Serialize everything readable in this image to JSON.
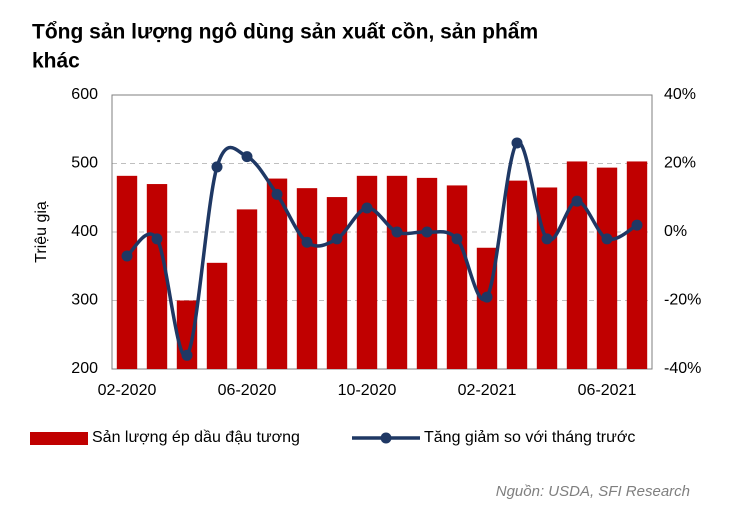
{
  "chart_data": {
    "type": "bar",
    "title": [
      "Tổng sản lượng ngô dùng sản xuất cồn, sản phẩm",
      "khác"
    ],
    "y_label": "Triệu giạ",
    "source": "Nguồn: USDA, SFI Research",
    "categories": [
      "02-2020",
      null,
      null,
      null,
      "06-2020",
      null,
      null,
      null,
      "10-2020",
      null,
      null,
      null,
      "02-2021",
      null,
      null,
      null,
      "06-2021",
      null
    ],
    "series": [
      {
        "name": "Sản lượng ép dầu đậu tương",
        "type": "bar",
        "color": "#c00000",
        "values": [
          482,
          470,
          300,
          355,
          433,
          478,
          464,
          451,
          482,
          482,
          479,
          468,
          377,
          475,
          465,
          503,
          494,
          503
        ]
      },
      {
        "name": "Tăng giảm so với tháng trước",
        "type": "line",
        "axis": "y2",
        "color": "#1f3864",
        "values": [
          -7,
          -2,
          -36,
          19,
          22,
          11,
          -3,
          -2,
          7,
          0,
          0,
          -2,
          -19,
          26,
          -2,
          9,
          -2,
          2
        ]
      }
    ],
    "ylim": [
      200,
      600
    ],
    "yticks": [
      200,
      300,
      400,
      500,
      600
    ],
    "y2lim": [
      -40,
      40
    ],
    "y2ticks": [
      {
        "value": -40,
        "label": "-40%"
      },
      {
        "value": -20,
        "label": "-20%"
      },
      {
        "value": 0,
        "label": "0%"
      },
      {
        "value": 20,
        "label": "20%"
      },
      {
        "value": 40,
        "label": "40%"
      }
    ],
    "grid": true
  }
}
